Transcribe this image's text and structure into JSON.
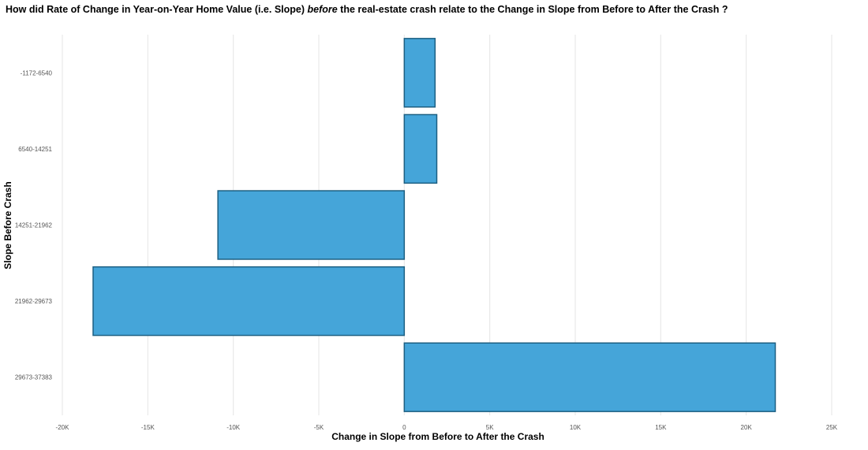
{
  "title": {
    "part1": "How did Rate of Change in Year-on-Year Home Value (i.e. Slope) ",
    "emphasis": "before",
    "part2": " the real-estate crash relate to the Change in Slope from Before to After the Crash ?"
  },
  "colors": {
    "bar_fill": "#45a5d9",
    "bar_stroke": "#1c5f82",
    "grid": "#e5e5e5"
  },
  "chart_data": {
    "type": "bar",
    "orientation": "horizontal",
    "title": "How did Rate of Change in Year-on-Year Home Value (i.e. Slope) before the real-estate crash relate to the Change in Slope from Before to After the Crash ?",
    "xlabel": "Change in Slope from Before to After the Crash",
    "ylabel": "Slope Before Crash",
    "categories": [
      "-1172-6540",
      "6540-14251",
      "14251-21962",
      "21962-29673",
      "29673-37383"
    ],
    "values": [
      1800,
      1900,
      -10900,
      -18200,
      21700
    ],
    "xlim": [
      -20000,
      25000
    ],
    "xticks": [
      -20000,
      -15000,
      -10000,
      -5000,
      0,
      5000,
      10000,
      15000,
      20000,
      25000
    ],
    "xtick_labels": [
      "-20K",
      "-15K",
      "-10K",
      "-5K",
      "0",
      "5K",
      "10K",
      "15K",
      "20K",
      "25K"
    ],
    "grid": "vertical major",
    "legend": "none"
  }
}
